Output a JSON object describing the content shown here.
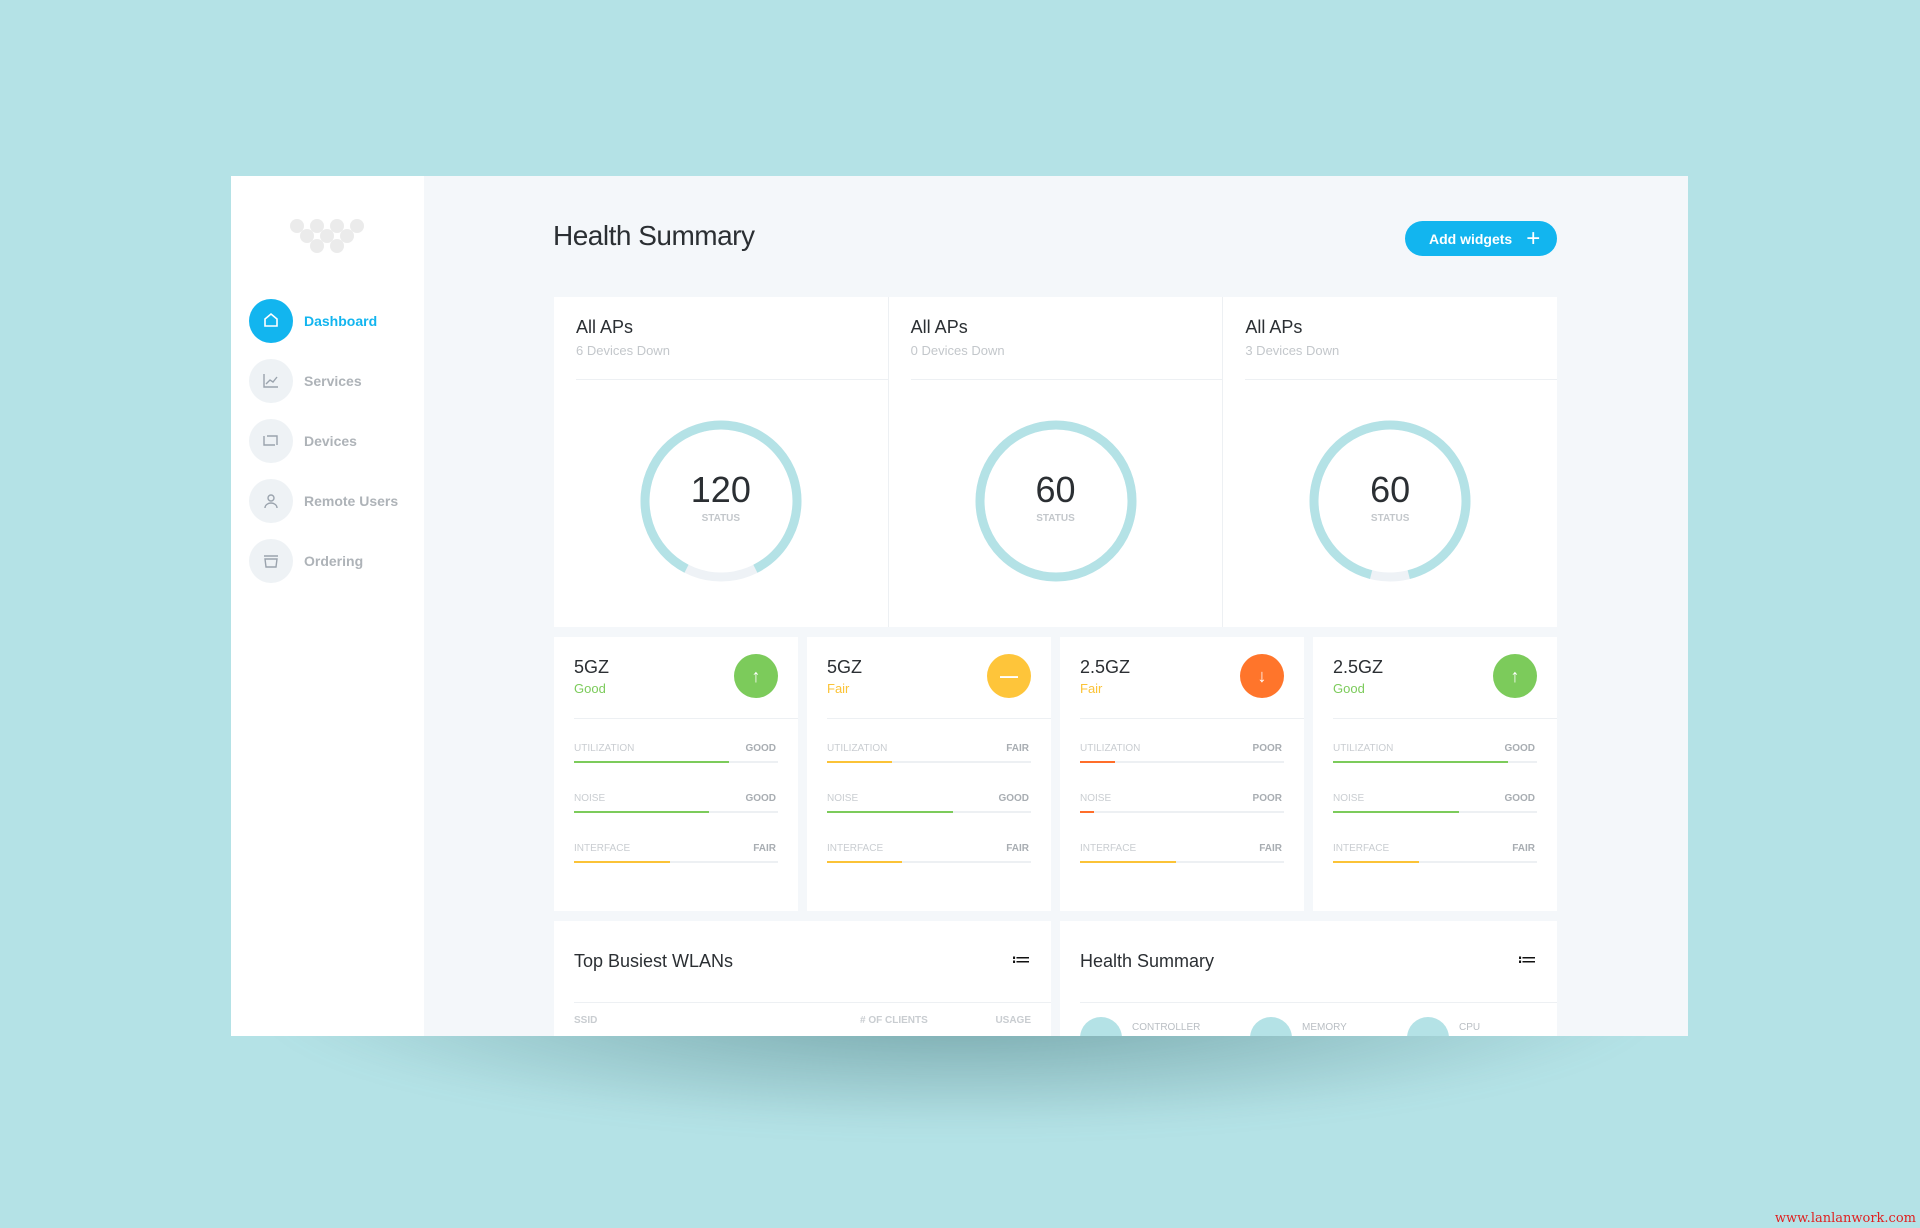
{
  "sidebar": {
    "items": [
      {
        "label": "Dashboard",
        "icon": "home-icon",
        "active": true
      },
      {
        "label": "Services",
        "icon": "chart-icon"
      },
      {
        "label": "Devices",
        "icon": "devices-icon"
      },
      {
        "label": "Remote Users",
        "icon": "user-icon"
      },
      {
        "label": "Ordering",
        "icon": "cart-icon"
      }
    ]
  },
  "header": {
    "title": "Health Summary",
    "add_button": "Add widgets",
    "add_icon": "+"
  },
  "aps": [
    {
      "title": "All APs",
      "subtitle": "6 Devices Down",
      "value": "120",
      "label": "STATUS",
      "fill": 0.85
    },
    {
      "title": "All APs",
      "subtitle": "0 Devices Down",
      "value": "60",
      "label": "STATUS",
      "fill": 1.0
    },
    {
      "title": "All APs",
      "subtitle": "3 Devices Down",
      "value": "60",
      "label": "STATUS",
      "fill": 0.92
    }
  ],
  "bands": [
    {
      "name": "5GZ",
      "status": "Good",
      "icon": "arrow-up-icon",
      "glyph": "↑",
      "color": "#7ccb5b",
      "status_color": "#7ccb5b",
      "metrics": [
        {
          "label": "UTILIZATION",
          "value": "GOOD",
          "fill": 0.76,
          "color": "#7ccb5b"
        },
        {
          "label": "NOISE",
          "value": "GOOD",
          "fill": 0.66,
          "color": "#7ccb5b"
        },
        {
          "label": "INTERFACE",
          "value": "FAIR",
          "fill": 0.47,
          "color": "#fbc337"
        }
      ]
    },
    {
      "name": "5GZ",
      "status": "Fair",
      "icon": "minus-icon",
      "glyph": "—",
      "color": "#fec53a",
      "status_color": "#fbc337",
      "metrics": [
        {
          "label": "UTILIZATION",
          "value": "FAIR",
          "fill": 0.32,
          "color": "#fbc337"
        },
        {
          "label": "NOISE",
          "value": "GOOD",
          "fill": 0.62,
          "color": "#7ccb5b"
        },
        {
          "label": "INTERFACE",
          "value": "FAIR",
          "fill": 0.37,
          "color": "#fbc337"
        }
      ]
    },
    {
      "name": "2.5GZ",
      "status": "Fair",
      "icon": "arrow-down-icon",
      "glyph": "↓",
      "color": "#ff752b",
      "status_color": "#fbc337",
      "metrics": [
        {
          "label": "UTILIZATION",
          "value": "POOR",
          "fill": 0.17,
          "color": "#ff6e2a"
        },
        {
          "label": "NOISE",
          "value": "POOR",
          "fill": 0.07,
          "color": "#ff6e2a"
        },
        {
          "label": "INTERFACE",
          "value": "FAIR",
          "fill": 0.47,
          "color": "#fbc337"
        }
      ]
    },
    {
      "name": "2.5GZ",
      "status": "Good",
      "icon": "arrow-up-icon",
      "glyph": "↑",
      "color": "#7ccb5b",
      "status_color": "#7ccb5b",
      "metrics": [
        {
          "label": "UTILIZATION",
          "value": "GOOD",
          "fill": 0.86,
          "color": "#7ccb5b"
        },
        {
          "label": "NOISE",
          "value": "GOOD",
          "fill": 0.62,
          "color": "#7ccb5b"
        },
        {
          "label": "INTERFACE",
          "value": "FAIR",
          "fill": 0.42,
          "color": "#fbc337"
        }
      ]
    }
  ],
  "wlans": {
    "title": "Top Busiest WLANs",
    "menu_icon": "≔",
    "columns": [
      "SSID",
      "# OF CLIENTS",
      "USAGE"
    ]
  },
  "health": {
    "title": "Health Summary",
    "menu_icon": "≔",
    "items": [
      "CONTROLLER",
      "MEMORY",
      "CPU"
    ]
  },
  "watermark": "www.lanlanwork.com",
  "colors": {
    "accent": "#12b5ef",
    "background": "#b4e2e6",
    "ring": "#b4e2e6"
  }
}
